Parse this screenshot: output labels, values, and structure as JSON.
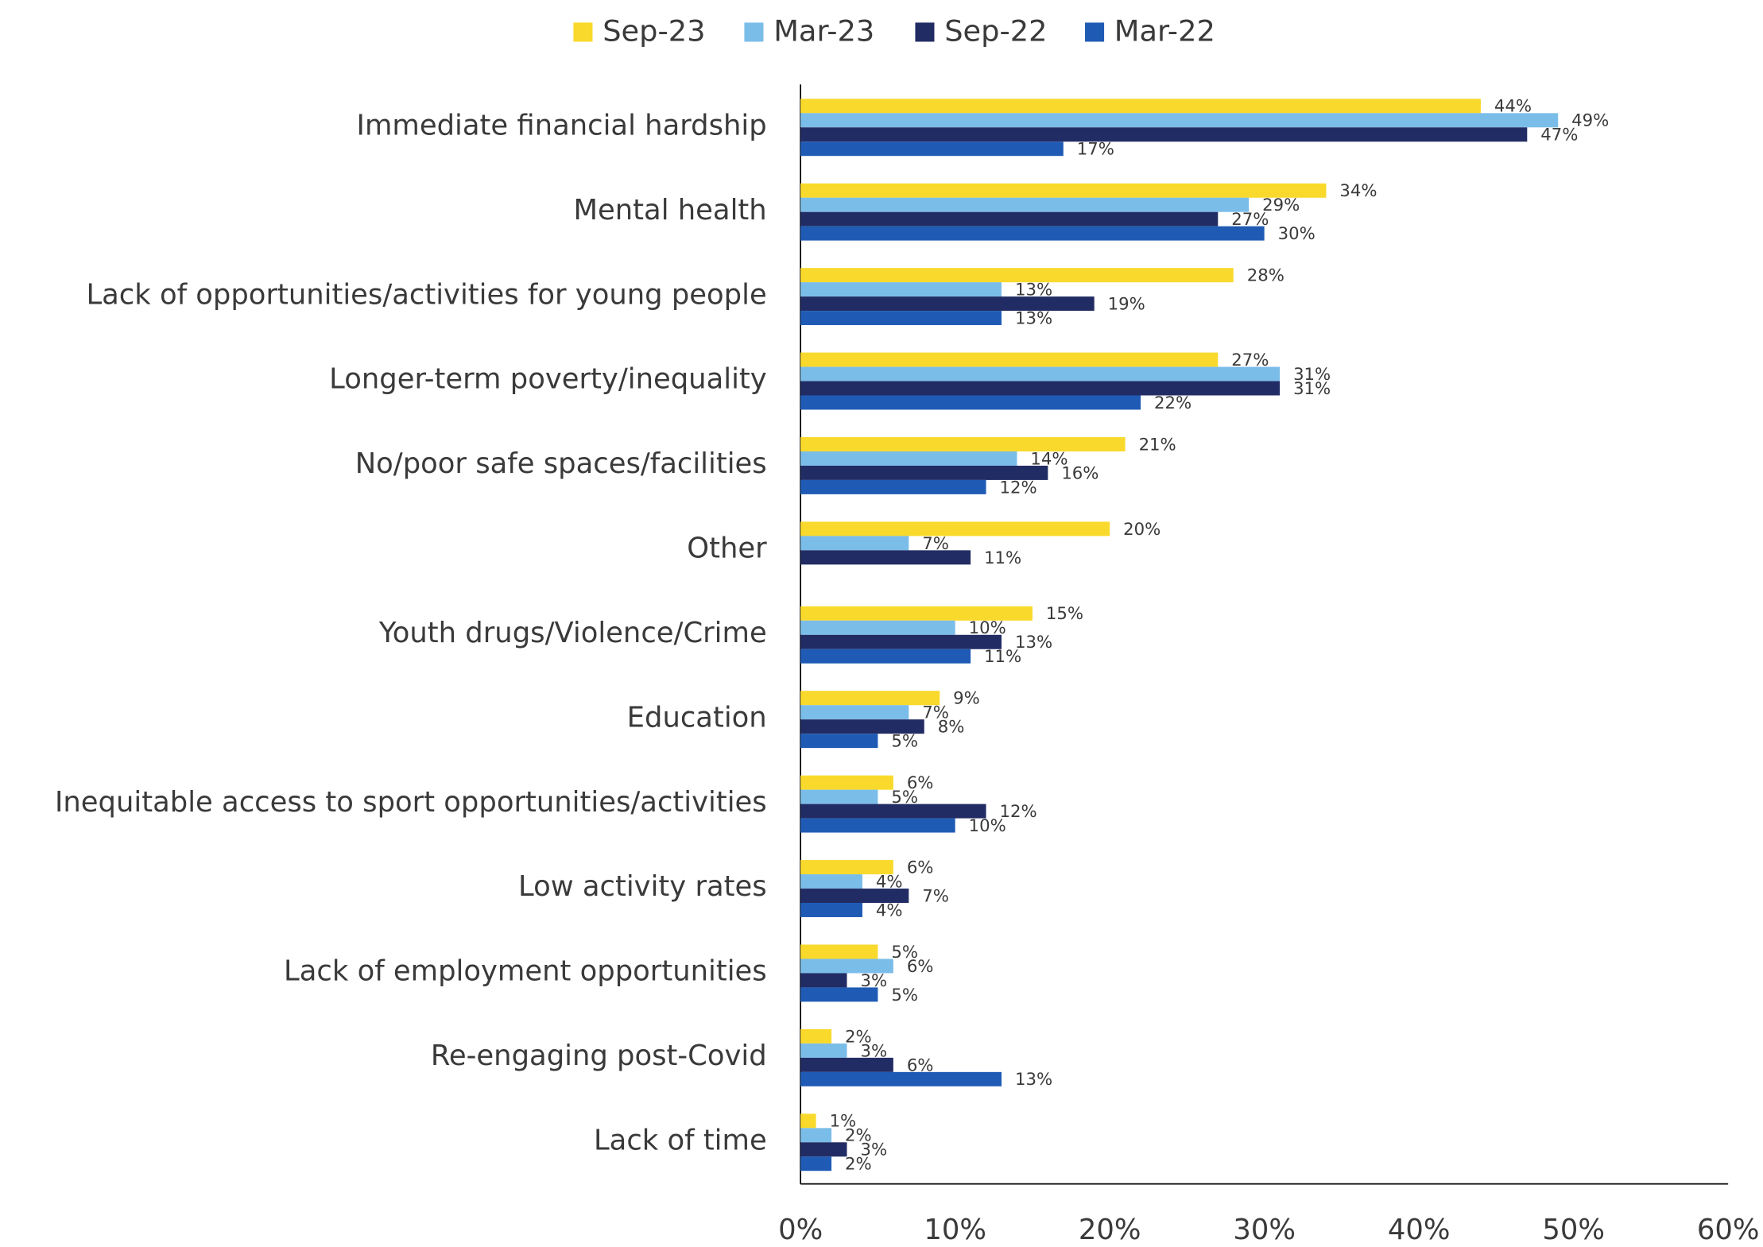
{
  "chart_data": {
    "type": "hbar",
    "categories": [
      "Immediate financial hardship",
      "Mental health",
      "Lack of opportunities/activities for young people",
      "Longer-term poverty/inequality",
      "No/poor safe spaces/facilities",
      "Other",
      "Youth drugs/Violence/Crime",
      "Education",
      "Inequitable access to sport opportunities/activities",
      "Low activity rates",
      "Lack of employment opportunities",
      "Re-engaging post-Covid",
      "Lack of time"
    ],
    "series": [
      {
        "name": "Sep-23",
        "color": "#f9d92b",
        "values": [
          44,
          34,
          28,
          27,
          21,
          20,
          15,
          9,
          6,
          6,
          5,
          2,
          1
        ],
        "value_labels": [
          "44%",
          "34%",
          "28%",
          "27%",
          "21%",
          "20%",
          "15%",
          "9%",
          "6%",
          "6%",
          "5%",
          "2%",
          "1%"
        ]
      },
      {
        "name": "Mar-23",
        "color": "#7bbde9",
        "values": [
          49,
          29,
          13,
          31,
          14,
          7,
          10,
          7,
          5,
          4,
          6,
          3,
          2
        ],
        "value_labels": [
          "49%",
          "29%",
          "13%",
          "31%",
          "14%",
          "7%",
          "10%",
          "7%",
          "5%",
          "4%",
          "6%",
          "3%",
          "2%"
        ]
      },
      {
        "name": "Sep-22",
        "color": "#222c64",
        "values": [
          47,
          27,
          19,
          31,
          16,
          11,
          13,
          8,
          12,
          7,
          3,
          6,
          3
        ],
        "value_labels": [
          "47%",
          "27%",
          "19%",
          "31%",
          "16%",
          "11%",
          "13%",
          "8%",
          "12%",
          "7%",
          "3%",
          "6%",
          "3%"
        ]
      },
      {
        "name": "Mar-22",
        "color": "#1f5bb5",
        "values": [
          17,
          30,
          13,
          22,
          12,
          null,
          11,
          5,
          10,
          4,
          5,
          13,
          2
        ],
        "value_labels": [
          "17%",
          "30%",
          "13%",
          "22%",
          "12%",
          null,
          "11%",
          "5%",
          "10%",
          "4%",
          "5%",
          "13%",
          "2%"
        ]
      }
    ],
    "xlim": [
      0,
      60
    ],
    "xticks": [
      {
        "value": 0,
        "label": "0%"
      },
      {
        "value": 10,
        "label": "10%"
      },
      {
        "value": 20,
        "label": "20%"
      },
      {
        "value": 30,
        "label": "30%"
      },
      {
        "value": 40,
        "label": "40%"
      },
      {
        "value": 50,
        "label": "50%"
      },
      {
        "value": 60,
        "label": "60%"
      }
    ],
    "legend": "top"
  }
}
